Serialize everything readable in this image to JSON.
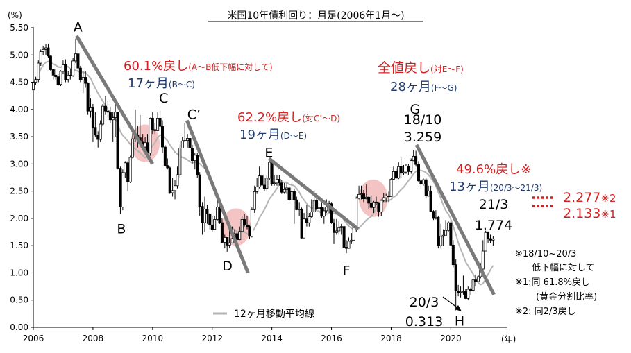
{
  "chart_data": {
    "type": "candlestick",
    "title": "米国10年債利回り：月足(2006年1月～)",
    "ylabel": "(%)",
    "xlabel": "(年)",
    "ylim": [
      0,
      5.5
    ],
    "xlim": [
      2006.0,
      2021.9
    ],
    "yticks": [
      "0.00",
      "0.50",
      "1.00",
      "1.50",
      "2.00",
      "2.50",
      "3.00",
      "3.50",
      "4.00",
      "4.50",
      "5.00",
      "5.50"
    ],
    "xticks": [
      "2006",
      "2008",
      "2010",
      "2012",
      "2014",
      "2016",
      "2018",
      "2020"
    ],
    "grid": false,
    "legend": {
      "position": "bottom-center",
      "label": "12ヶ月移動平均線",
      "color": "#b5b5b5"
    },
    "points": [
      {
        "label": "A",
        "x": 2007.5,
        "y": 5.3
      },
      {
        "label": "B",
        "x": 2009.0,
        "y": 2.08
      },
      {
        "label": "C",
        "x": 2010.3,
        "y": 4.0
      },
      {
        "label": "C’",
        "x": 2011.2,
        "y": 3.7
      },
      {
        "label": "D",
        "x": 2012.6,
        "y": 1.4
      },
      {
        "label": "E",
        "x": 2013.9,
        "y": 3.0
      },
      {
        "label": "F",
        "x": 2016.5,
        "y": 1.32
      },
      {
        "label": "G",
        "x": 2018.8,
        "y": 3.259
      },
      {
        "label": "H",
        "x": 2020.2,
        "y": 0.313
      }
    ],
    "trendlines": [
      {
        "from": [
          2007.45,
          5.35
        ],
        "to": [
          2010.0,
          3.0
        ]
      },
      {
        "from": [
          2011.15,
          3.8
        ],
        "to": [
          2013.2,
          1.0
        ]
      },
      {
        "from": [
          2013.9,
          3.1
        ],
        "to": [
          2016.9,
          1.8
        ]
      },
      {
        "from": [
          2018.85,
          3.35
        ],
        "to": [
          2021.45,
          0.6
        ]
      }
    ],
    "highlights": [
      {
        "x": 2009.75,
        "y": 3.38
      },
      {
        "x": 2012.8,
        "y": 1.84
      },
      {
        "x": 2017.4,
        "y": 2.37
      }
    ],
    "ohlc": [
      [
        2006.0,
        4.36,
        4.5,
        4.3,
        4.55
      ],
      [
        2006.08,
        4.5,
        4.55,
        4.45,
        4.6
      ],
      [
        2006.17,
        4.55,
        4.85,
        4.5,
        4.9
      ],
      [
        2006.25,
        4.85,
        5.06,
        4.8,
        5.1
      ],
      [
        2006.33,
        5.06,
        5.1,
        5.0,
        5.17
      ],
      [
        2006.42,
        5.1,
        5.13,
        5.0,
        5.2
      ],
      [
        2006.5,
        5.13,
        4.98,
        4.95,
        5.2
      ],
      [
        2006.58,
        4.98,
        4.73,
        4.7,
        5.0
      ],
      [
        2006.67,
        4.73,
        4.63,
        4.55,
        4.75
      ],
      [
        2006.75,
        4.63,
        4.6,
        4.55,
        4.75
      ],
      [
        2006.83,
        4.6,
        4.46,
        4.43,
        4.65
      ],
      [
        2006.92,
        4.46,
        4.7,
        4.43,
        4.72
      ],
      [
        2007.0,
        4.7,
        4.82,
        4.65,
        4.9
      ],
      [
        2007.08,
        4.82,
        4.55,
        4.5,
        4.92
      ],
      [
        2007.17,
        4.55,
        4.63,
        4.5,
        4.7
      ],
      [
        2007.25,
        4.63,
        4.62,
        4.55,
        4.75
      ],
      [
        2007.33,
        4.62,
        4.89,
        4.6,
        4.95
      ],
      [
        2007.42,
        4.89,
        5.02,
        4.85,
        5.3
      ],
      [
        2007.5,
        5.02,
        4.76,
        4.7,
        5.1
      ],
      [
        2007.58,
        4.76,
        4.54,
        4.5,
        4.8
      ],
      [
        2007.67,
        4.54,
        4.59,
        4.3,
        4.7
      ],
      [
        2007.75,
        4.59,
        4.48,
        4.4,
        4.7
      ],
      [
        2007.83,
        4.48,
        3.97,
        3.9,
        4.5
      ],
      [
        2007.92,
        3.97,
        4.03,
        3.85,
        4.2
      ],
      [
        2008.0,
        4.03,
        3.67,
        3.4,
        4.1
      ],
      [
        2008.08,
        3.67,
        3.53,
        3.5,
        3.95
      ],
      [
        2008.17,
        3.53,
        3.45,
        3.3,
        3.6
      ],
      [
        2008.25,
        3.45,
        3.73,
        3.4,
        3.8
      ],
      [
        2008.33,
        3.73,
        4.06,
        3.7,
        4.1
      ],
      [
        2008.42,
        4.06,
        3.97,
        3.9,
        4.25
      ],
      [
        2008.5,
        3.97,
        3.95,
        3.85,
        4.15
      ],
      [
        2008.58,
        3.95,
        3.81,
        3.75,
        4.05
      ],
      [
        2008.67,
        3.81,
        3.85,
        3.4,
        3.95
      ],
      [
        2008.75,
        3.85,
        3.95,
        3.5,
        4.1
      ],
      [
        2008.83,
        3.95,
        2.92,
        2.9,
        3.95
      ],
      [
        2008.92,
        2.92,
        2.21,
        2.08,
        2.95
      ],
      [
        2009.0,
        2.21,
        2.84,
        2.15,
        2.9
      ],
      [
        2009.08,
        2.84,
        3.02,
        2.75,
        3.05
      ],
      [
        2009.17,
        3.02,
        2.67,
        2.5,
        3.05
      ],
      [
        2009.25,
        2.67,
        3.12,
        2.65,
        3.15
      ],
      [
        2009.33,
        3.12,
        3.46,
        3.1,
        3.6
      ],
      [
        2009.42,
        3.46,
        3.53,
        3.4,
        4.0
      ],
      [
        2009.5,
        3.53,
        3.48,
        3.3,
        3.7
      ],
      [
        2009.58,
        3.48,
        3.4,
        3.35,
        3.9
      ],
      [
        2009.67,
        3.4,
        3.31,
        3.25,
        3.55
      ],
      [
        2009.75,
        3.31,
        3.39,
        3.2,
        3.5
      ],
      [
        2009.83,
        3.39,
        3.2,
        3.15,
        3.55
      ],
      [
        2009.92,
        3.2,
        3.84,
        3.15,
        3.85
      ],
      [
        2010.0,
        3.84,
        3.63,
        3.55,
        3.95
      ],
      [
        2010.08,
        3.63,
        3.61,
        3.55,
        3.75
      ],
      [
        2010.17,
        3.61,
        3.84,
        3.6,
        3.95
      ],
      [
        2010.25,
        3.84,
        3.69,
        3.65,
        4.0
      ],
      [
        2010.33,
        3.69,
        3.31,
        3.2,
        3.8
      ],
      [
        2010.42,
        3.31,
        2.97,
        2.95,
        3.35
      ],
      [
        2010.5,
        2.97,
        2.93,
        2.9,
        3.1
      ],
      [
        2010.58,
        2.93,
        2.47,
        2.45,
        2.95
      ],
      [
        2010.67,
        2.47,
        2.51,
        2.4,
        2.75
      ],
      [
        2010.75,
        2.51,
        2.6,
        2.35,
        2.7
      ],
      [
        2010.83,
        2.6,
        2.8,
        2.55,
        2.95
      ],
      [
        2010.92,
        2.8,
        3.29,
        2.75,
        3.35
      ],
      [
        2011.0,
        3.29,
        3.42,
        3.3,
        3.5
      ],
      [
        2011.08,
        3.42,
        3.43,
        3.4,
        3.75
      ],
      [
        2011.17,
        3.43,
        3.47,
        3.3,
        3.55
      ],
      [
        2011.25,
        3.47,
        3.29,
        3.25,
        3.6
      ],
      [
        2011.33,
        3.29,
        3.06,
        3.0,
        3.35
      ],
      [
        2011.42,
        3.06,
        3.16,
        2.9,
        3.2
      ],
      [
        2011.5,
        3.16,
        2.8,
        2.75,
        3.2
      ],
      [
        2011.58,
        2.8,
        2.22,
        2.05,
        2.85
      ],
      [
        2011.67,
        2.22,
        1.92,
        1.7,
        2.3
      ],
      [
        2011.75,
        1.92,
        2.17,
        1.75,
        2.4
      ],
      [
        2011.83,
        2.17,
        2.08,
        1.9,
        2.25
      ],
      [
        2011.92,
        2.08,
        1.88,
        1.8,
        2.1
      ],
      [
        2012.0,
        1.88,
        1.8,
        1.75,
        2.05
      ],
      [
        2012.08,
        1.8,
        1.98,
        1.8,
        2.05
      ],
      [
        2012.17,
        1.98,
        2.21,
        1.95,
        2.4
      ],
      [
        2012.25,
        2.21,
        1.92,
        1.9,
        2.25
      ],
      [
        2012.33,
        1.92,
        1.56,
        1.55,
        2.0
      ],
      [
        2012.42,
        1.56,
        1.65,
        1.45,
        1.7
      ],
      [
        2012.5,
        1.65,
        1.51,
        1.39,
        1.65
      ],
      [
        2012.58,
        1.51,
        1.55,
        1.45,
        1.85
      ],
      [
        2012.67,
        1.55,
        1.63,
        1.55,
        1.85
      ],
      [
        2012.75,
        1.63,
        1.72,
        1.6,
        1.8
      ],
      [
        2012.83,
        1.72,
        1.61,
        1.58,
        1.75
      ],
      [
        2012.92,
        1.61,
        1.76,
        1.6,
        1.85
      ],
      [
        2013.0,
        1.76,
        1.98,
        1.75,
        2.05
      ],
      [
        2013.08,
        1.98,
        1.88,
        1.85,
        2.08
      ],
      [
        2013.17,
        1.88,
        1.85,
        1.8,
        2.05
      ],
      [
        2013.25,
        1.85,
        1.67,
        1.62,
        1.87
      ],
      [
        2013.33,
        1.67,
        2.16,
        1.65,
        2.2
      ],
      [
        2013.42,
        2.16,
        2.49,
        2.1,
        2.6
      ],
      [
        2013.5,
        2.49,
        2.58,
        2.45,
        2.75
      ],
      [
        2013.58,
        2.58,
        2.78,
        2.55,
        2.95
      ],
      [
        2013.67,
        2.78,
        2.61,
        2.55,
        3.0
      ],
      [
        2013.75,
        2.61,
        2.55,
        2.5,
        2.75
      ],
      [
        2013.83,
        2.55,
        2.74,
        2.5,
        2.8
      ],
      [
        2013.92,
        2.74,
        3.03,
        2.7,
        3.05
      ],
      [
        2014.0,
        3.03,
        2.64,
        2.6,
        3.05
      ],
      [
        2014.08,
        2.64,
        2.65,
        2.6,
        2.8
      ],
      [
        2014.17,
        2.65,
        2.72,
        2.6,
        2.8
      ],
      [
        2014.25,
        2.72,
        2.65,
        2.6,
        2.8
      ],
      [
        2014.33,
        2.65,
        2.48,
        2.45,
        2.7
      ],
      [
        2014.42,
        2.48,
        2.53,
        2.45,
        2.65
      ],
      [
        2014.5,
        2.53,
        2.56,
        2.45,
        2.65
      ],
      [
        2014.58,
        2.56,
        2.34,
        2.32,
        2.6
      ],
      [
        2014.67,
        2.34,
        2.49,
        2.35,
        2.65
      ],
      [
        2014.75,
        2.49,
        2.34,
        1.9,
        2.55
      ],
      [
        2014.83,
        2.34,
        2.16,
        2.15,
        2.4
      ],
      [
        2014.92,
        2.16,
        2.17,
        2.05,
        2.3
      ],
      [
        2015.0,
        2.17,
        1.64,
        1.63,
        2.2
      ],
      [
        2015.08,
        1.64,
        1.99,
        1.65,
        2.1
      ],
      [
        2015.17,
        1.99,
        1.92,
        1.85,
        2.25
      ],
      [
        2015.25,
        1.92,
        2.03,
        1.85,
        2.1
      ],
      [
        2015.33,
        2.03,
        2.12,
        2.0,
        2.35
      ],
      [
        2015.42,
        2.12,
        2.33,
        2.1,
        2.5
      ],
      [
        2015.5,
        2.33,
        2.18,
        2.15,
        2.45
      ],
      [
        2015.58,
        2.18,
        2.2,
        1.9,
        2.25
      ],
      [
        2015.67,
        2.2,
        2.04,
        2.0,
        2.3
      ],
      [
        2015.75,
        2.04,
        2.14,
        1.9,
        2.2
      ],
      [
        2015.83,
        2.14,
        2.21,
        2.1,
        2.35
      ],
      [
        2015.92,
        2.21,
        2.27,
        2.1,
        2.32
      ],
      [
        2016.0,
        2.27,
        1.92,
        1.9,
        2.3
      ],
      [
        2016.08,
        1.92,
        1.74,
        1.53,
        1.99
      ],
      [
        2016.17,
        1.74,
        1.77,
        1.7,
        1.99
      ],
      [
        2016.25,
        1.77,
        1.83,
        1.7,
        1.95
      ],
      [
        2016.33,
        1.83,
        1.85,
        1.7,
        1.9
      ],
      [
        2016.42,
        1.85,
        1.47,
        1.45,
        1.87
      ],
      [
        2016.5,
        1.47,
        1.45,
        1.36,
        1.6
      ],
      [
        2016.58,
        1.45,
        1.58,
        1.5,
        1.65
      ],
      [
        2016.67,
        1.58,
        1.6,
        1.53,
        1.73
      ],
      [
        2016.75,
        1.6,
        1.83,
        1.6,
        1.88
      ],
      [
        2016.83,
        1.83,
        2.37,
        1.75,
        2.4
      ],
      [
        2016.92,
        2.37,
        2.44,
        2.35,
        2.6
      ],
      [
        2017.0,
        2.44,
        2.45,
        2.35,
        2.6
      ],
      [
        2017.08,
        2.45,
        2.36,
        2.3,
        2.52
      ],
      [
        2017.17,
        2.36,
        2.39,
        2.35,
        2.62
      ],
      [
        2017.25,
        2.39,
        2.28,
        2.17,
        2.42
      ],
      [
        2017.33,
        2.28,
        2.2,
        2.18,
        2.42
      ],
      [
        2017.42,
        2.2,
        2.3,
        2.1,
        2.32
      ],
      [
        2017.5,
        2.3,
        2.29,
        2.25,
        2.4
      ],
      [
        2017.58,
        2.29,
        2.12,
        2.03,
        2.3
      ],
      [
        2017.67,
        2.12,
        2.33,
        2.05,
        2.35
      ],
      [
        2017.75,
        2.33,
        2.38,
        2.3,
        2.47
      ],
      [
        2017.83,
        2.38,
        2.41,
        2.3,
        2.45
      ],
      [
        2017.92,
        2.41,
        2.4,
        2.3,
        2.49
      ],
      [
        2018.0,
        2.4,
        2.72,
        2.4,
        2.75
      ],
      [
        2018.08,
        2.72,
        2.86,
        2.7,
        2.95
      ],
      [
        2018.17,
        2.86,
        2.74,
        2.73,
        2.92
      ],
      [
        2018.25,
        2.74,
        2.95,
        2.72,
        3.03
      ],
      [
        2018.33,
        2.95,
        2.83,
        2.75,
        3.12
      ],
      [
        2018.42,
        2.83,
        2.85,
        2.8,
        2.98
      ],
      [
        2018.5,
        2.85,
        2.96,
        2.82,
        3.0
      ],
      [
        2018.58,
        2.96,
        2.86,
        2.8,
        3.0
      ],
      [
        2018.67,
        2.86,
        3.06,
        2.82,
        3.1
      ],
      [
        2018.75,
        3.06,
        3.14,
        3.05,
        3.259
      ],
      [
        2018.83,
        3.14,
        2.99,
        2.95,
        3.24
      ],
      [
        2018.92,
        2.99,
        2.69,
        2.67,
        3.05
      ],
      [
        2019.0,
        2.69,
        2.63,
        2.55,
        2.8
      ],
      [
        2019.08,
        2.63,
        2.71,
        2.6,
        2.75
      ],
      [
        2019.17,
        2.71,
        2.41,
        2.37,
        2.75
      ],
      [
        2019.25,
        2.41,
        2.5,
        2.4,
        2.6
      ],
      [
        2019.33,
        2.5,
        2.13,
        2.12,
        2.6
      ],
      [
        2019.42,
        2.13,
        2.0,
        1.97,
        2.15
      ],
      [
        2019.5,
        2.0,
        2.02,
        1.98,
        2.15
      ],
      [
        2019.58,
        2.02,
        1.5,
        1.45,
        2.05
      ],
      [
        2019.67,
        1.5,
        1.67,
        1.45,
        1.9
      ],
      [
        2019.75,
        1.67,
        1.69,
        1.5,
        1.8
      ],
      [
        2019.83,
        1.69,
        1.78,
        1.7,
        1.97
      ],
      [
        2019.92,
        1.78,
        1.92,
        1.75,
        1.95
      ],
      [
        2020.0,
        1.92,
        1.51,
        1.5,
        1.95
      ],
      [
        2020.08,
        1.51,
        1.15,
        1.1,
        1.6
      ],
      [
        2020.17,
        1.15,
        0.67,
        0.313,
        1.25
      ],
      [
        2020.25,
        0.67,
        0.64,
        0.57,
        0.78
      ],
      [
        2020.33,
        0.64,
        0.65,
        0.55,
        0.75
      ],
      [
        2020.42,
        0.65,
        0.66,
        0.6,
        0.95
      ],
      [
        2020.5,
        0.66,
        0.53,
        0.52,
        0.7
      ],
      [
        2020.58,
        0.53,
        0.7,
        0.5,
        0.75
      ],
      [
        2020.67,
        0.7,
        0.68,
        0.6,
        0.73
      ],
      [
        2020.75,
        0.68,
        0.87,
        0.65,
        0.9
      ],
      [
        2020.83,
        0.87,
        0.84,
        0.75,
        0.97
      ],
      [
        2020.92,
        0.84,
        0.93,
        0.85,
        0.96
      ],
      [
        2021.0,
        0.93,
        1.07,
        0.9,
        1.18
      ],
      [
        2021.08,
        1.07,
        1.4,
        1.05,
        1.6
      ],
      [
        2021.17,
        1.4,
        1.74,
        1.4,
        1.774
      ],
      [
        2021.25,
        1.74,
        1.63,
        1.55,
        1.76
      ],
      [
        2021.33,
        1.63,
        1.6,
        1.55,
        1.7
      ],
      [
        2021.42,
        1.6,
        1.62,
        1.5,
        1.68
      ]
    ]
  },
  "annotations": {
    "ret1_main": "60.1%戻し",
    "ret1_sub": "(A～B低下幅に対して)",
    "dur1_main": "17ヶ月",
    "dur1_sub": "(B～C)",
    "ret2_main": "62.2%戻し",
    "ret2_sub": "(対C’～D)",
    "dur2_main": "19ヶ月",
    "dur2_sub": "(D～E)",
    "ret3_main": "全値戻し",
    "ret3_sub": "(対E～F)",
    "dur3_main": "28ヶ月",
    "dur3_sub": "(F～G)",
    "ret4_main": "49.6%戻し※",
    "dur4_main": "13ヶ月",
    "dur4_sub": "(20/3～21/3)",
    "g_date": "18/10",
    "g_value": "3.259",
    "h_date": "20/3",
    "h_value": "0.313",
    "cur_date": "21/3",
    "cur_value": "1.774",
    "level2": "2.277",
    "level2_mark": "※2",
    "level1": "2.133",
    "level1_mark": "※1",
    "note1": "※18/10~20/3",
    "note2": "低下幅に対して",
    "note3": "※1:同 61.8%戻し",
    "note4": "(黄金分割比率)",
    "note5": "※2: 同2/3戻し"
  },
  "colors": {
    "red": "#d42020",
    "navy": "#1f3a6e",
    "trend": "#7a7a7a",
    "ma": "#b5b5b5",
    "highlight": "#f2b8b8",
    "candle": "#000000"
  }
}
